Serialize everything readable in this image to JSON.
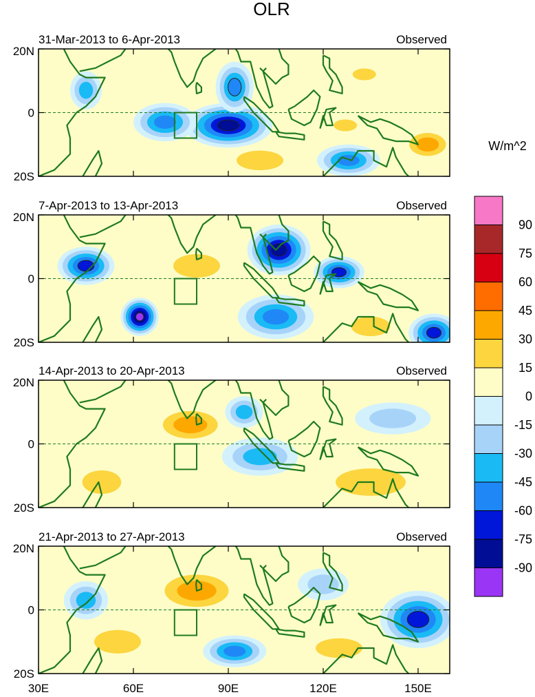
{
  "chart_data": {
    "type": "heatmap",
    "title": "OLR",
    "variable": "OLR",
    "units_label": "W/m^2",
    "x_ticks": [
      "30E",
      "60E",
      "90E",
      "120E",
      "150E"
    ],
    "x_tick_values": [
      30,
      60,
      90,
      120,
      150
    ],
    "y_ticks": [
      "20N",
      "0",
      "20S"
    ],
    "y_tick_values": [
      20,
      0,
      -20
    ],
    "lon_range": [
      30,
      160
    ],
    "lat_range": [
      -20,
      20
    ],
    "colorbar": {
      "tick_labels": [
        "90",
        "75",
        "60",
        "45",
        "30",
        "15",
        "0",
        "-15",
        "-30",
        "-45",
        "-60",
        "-75",
        "-90"
      ],
      "levels": [
        90,
        75,
        60,
        45,
        30,
        15,
        0,
        -15,
        -30,
        -45,
        -60,
        -75,
        -90
      ],
      "colors": [
        "#f778c6",
        "#a8282a",
        "#d70012",
        "#ff6c00",
        "#fda800",
        "#fcd53f",
        "#fefdc8",
        "#d2f1fd",
        "#a8d3f9",
        "#1abaf5",
        "#1f88f6",
        "#0016d8",
        "#000d94",
        "#9b35f5"
      ]
    },
    "panels": [
      {
        "period": "31-Mar-2013 to 6-Apr-2013",
        "label": "Observed",
        "features": [
          {
            "type": "anomaly",
            "kind": "negative",
            "lon": 90,
            "lat": -4,
            "r_lon": 14,
            "r_lat": 7,
            "min": -80
          },
          {
            "type": "anomaly",
            "kind": "negative",
            "lon": 70,
            "lat": -3,
            "r_lon": 10,
            "r_lat": 6,
            "min": -55
          },
          {
            "type": "anomaly",
            "kind": "negative",
            "lon": 92,
            "lat": 8,
            "r_lon": 6,
            "r_lat": 8,
            "min": -60
          },
          {
            "type": "anomaly",
            "kind": "negative",
            "lon": 45,
            "lat": 7,
            "r_lon": 5,
            "r_lat": 6,
            "min": -45
          },
          {
            "type": "anomaly",
            "kind": "negative",
            "lon": 128,
            "lat": -15,
            "r_lon": 10,
            "r_lat": 5,
            "min": -55
          },
          {
            "type": "anomaly",
            "kind": "positive",
            "lon": 153,
            "lat": -10,
            "r_lon": 8,
            "r_lat": 5,
            "min": 32
          },
          {
            "type": "anomaly",
            "kind": "positive",
            "lon": 127,
            "lat": -4,
            "r_lon": 6,
            "r_lat": 3,
            "min": 22
          },
          {
            "type": "anomaly",
            "kind": "positive",
            "lon": 133,
            "lat": 12,
            "r_lon": 6,
            "r_lat": 3,
            "min": 20
          },
          {
            "type": "anomaly",
            "kind": "positive",
            "lon": 100,
            "lat": -15,
            "r_lon": 12,
            "r_lat": 5,
            "min": 18
          }
        ]
      },
      {
        "period": "7-Apr-2013 to 13-Apr-2013",
        "label": "Observed",
        "features": [
          {
            "type": "anomaly",
            "kind": "negative",
            "lon": 62,
            "lat": -12,
            "r_lon": 6,
            "r_lat": 6,
            "min": -92
          },
          {
            "type": "anomaly",
            "kind": "negative",
            "lon": 106,
            "lat": 9,
            "r_lon": 10,
            "r_lat": 8,
            "min": -80
          },
          {
            "type": "anomaly",
            "kind": "negative",
            "lon": 125,
            "lat": 2,
            "r_lon": 8,
            "r_lat": 5,
            "min": -75
          },
          {
            "type": "anomaly",
            "kind": "negative",
            "lon": 45,
            "lat": 4,
            "r_lon": 9,
            "r_lat": 6,
            "min": -70
          },
          {
            "type": "anomaly",
            "kind": "negative",
            "lon": 155,
            "lat": -17,
            "r_lon": 8,
            "r_lat": 6,
            "min": -75
          },
          {
            "type": "anomaly",
            "kind": "negative",
            "lon": 105,
            "lat": -12,
            "r_lon": 12,
            "r_lat": 7,
            "min": -55
          },
          {
            "type": "anomaly",
            "kind": "positive",
            "lon": 80,
            "lat": 4,
            "r_lon": 12,
            "r_lat": 6,
            "min": 28
          },
          {
            "type": "anomaly",
            "kind": "positive",
            "lon": 135,
            "lat": -15,
            "r_lon": 10,
            "r_lat": 5,
            "min": 20
          }
        ]
      },
      {
        "period": "14-Apr-2013 to 20-Apr-2013",
        "label": "Observed",
        "features": [
          {
            "type": "anomaly",
            "kind": "positive",
            "lon": 78,
            "lat": 6,
            "r_lon": 12,
            "r_lat": 6,
            "min": 38
          },
          {
            "type": "anomaly",
            "kind": "positive",
            "lon": 135,
            "lat": -12,
            "r_lon": 18,
            "r_lat": 7,
            "min": 28
          },
          {
            "type": "anomaly",
            "kind": "positive",
            "lon": 50,
            "lat": -12,
            "r_lon": 10,
            "r_lat": 6,
            "min": 22
          },
          {
            "type": "anomaly",
            "kind": "negative",
            "lon": 100,
            "lat": -4,
            "r_lon": 12,
            "r_lat": 6,
            "min": -45
          },
          {
            "type": "anomaly",
            "kind": "negative",
            "lon": 95,
            "lat": 10,
            "r_lon": 6,
            "r_lat": 5,
            "min": -35
          },
          {
            "type": "anomaly",
            "kind": "negative",
            "lon": 142,
            "lat": 8,
            "r_lon": 12,
            "r_lat": 5,
            "min": -30
          }
        ]
      },
      {
        "period": "21-Apr-2013 to 27-Apr-2013",
        "label": "Observed",
        "features": [
          {
            "type": "anomaly",
            "kind": "positive",
            "lon": 80,
            "lat": 6,
            "r_lon": 14,
            "r_lat": 7,
            "min": 38
          },
          {
            "type": "anomaly",
            "kind": "positive",
            "lon": 55,
            "lat": -10,
            "r_lon": 12,
            "r_lat": 6,
            "min": 22
          },
          {
            "type": "anomaly",
            "kind": "positive",
            "lon": 125,
            "lat": -12,
            "r_lon": 12,
            "r_lat": 5,
            "min": 28
          },
          {
            "type": "anomaly",
            "kind": "negative",
            "lon": 150,
            "lat": -3,
            "r_lon": 12,
            "r_lat": 9,
            "min": -65
          },
          {
            "type": "anomaly",
            "kind": "negative",
            "lon": 92,
            "lat": -13,
            "r_lon": 10,
            "r_lat": 5,
            "min": -50
          },
          {
            "type": "anomaly",
            "kind": "negative",
            "lon": 45,
            "lat": 3,
            "r_lon": 7,
            "r_lat": 6,
            "min": -40
          },
          {
            "type": "anomaly",
            "kind": "negative",
            "lon": 120,
            "lat": 8,
            "r_lon": 8,
            "r_lat": 5,
            "min": -30
          }
        ]
      }
    ]
  }
}
